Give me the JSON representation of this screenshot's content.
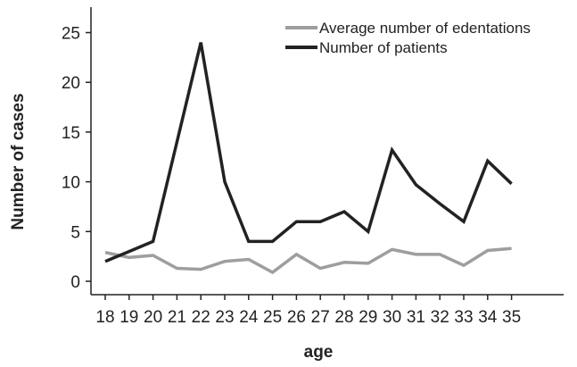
{
  "chart_data": {
    "type": "line",
    "title": "",
    "xlabel": "age",
    "ylabel": "Number of cases",
    "categories": [
      "18",
      "19",
      "20",
      "21",
      "22",
      "23",
      "24",
      "25",
      "26",
      "27",
      "28",
      "29",
      "30",
      "31",
      "32",
      "33",
      "34",
      "35"
    ],
    "ylim": [
      -1,
      28
    ],
    "yticks": [
      0,
      5,
      10,
      15,
      20,
      25
    ],
    "grid": false,
    "legend_position": "top-right",
    "series": [
      {
        "name": "Average number of edentations",
        "color": "#9e9e9e",
        "values": [
          2.9,
          2.4,
          2.6,
          1.3,
          1.2,
          2.0,
          2.2,
          0.9,
          2.7,
          1.3,
          1.9,
          1.8,
          3.2,
          2.7,
          2.7,
          1.6,
          3.1,
          3.3
        ]
      },
      {
        "name": "Number of patients",
        "color": "#222222",
        "values": [
          2.0,
          3.0,
          4.0,
          14.0,
          24.0,
          10.0,
          4.0,
          4.0,
          6.0,
          6.0,
          7.0,
          5.0,
          13.2,
          9.7,
          7.8,
          6.0,
          12.1,
          9.8
        ]
      }
    ]
  }
}
